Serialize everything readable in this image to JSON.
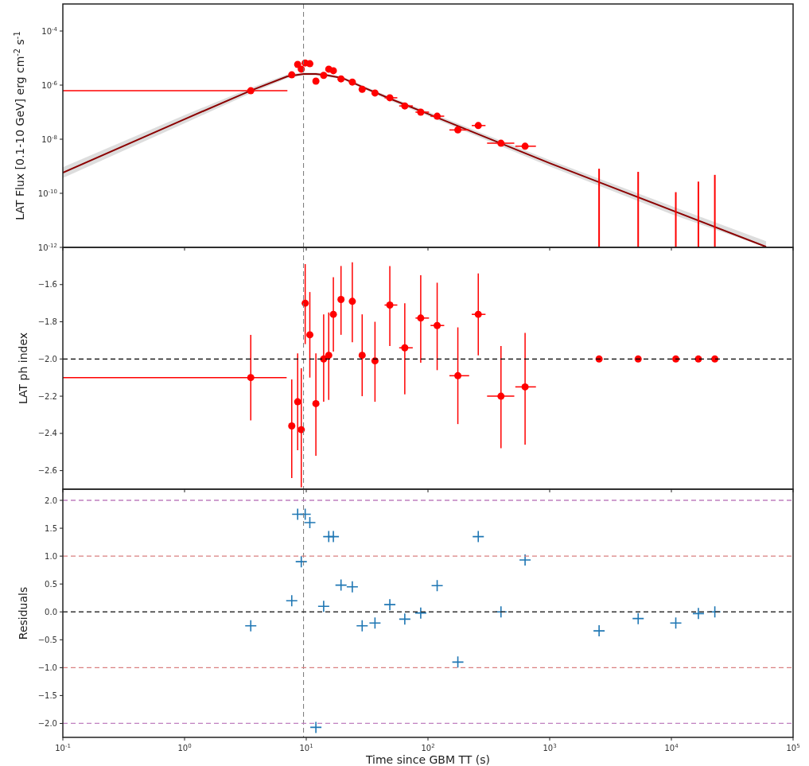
{
  "chart_data": [
    {
      "type": "scatter",
      "ylabel": "LAT Flux [0.1-10 GeV] erg cm$^{-2}$ s$^{-1}$",
      "log": "xy",
      "grid": false,
      "tick_labels": "y",
      "xlim": [
        0.1,
        100000
      ],
      "xticks": [
        {
          "value": 0.1,
          "label": null
        },
        {
          "value": 1,
          "label": null
        },
        {
          "value": 10,
          "label": null
        },
        {
          "value": 100,
          "label": null
        },
        {
          "value": 1000,
          "label": null
        },
        {
          "value": 10000,
          "label": null
        },
        {
          "value": 100000,
          "label": null
        }
      ],
      "ylim": [
        1e-12,
        0.001
      ],
      "yticks": [
        {
          "value": 1e-12,
          "label": "10$^{-12}$"
        },
        {
          "value": 1e-10,
          "label": "10$^{-10}$"
        },
        {
          "value": 1e-08,
          "label": "10$^{-8}$"
        },
        {
          "value": 1e-06,
          "label": "10$^{-6}$"
        },
        {
          "value": 0.0001,
          "label": "10$^{-4}$"
        }
      ],
      "ref_lines": [
        {
          "axis": "x",
          "value": 9.5,
          "color": "#777777",
          "line_style": "dashed"
        }
      ],
      "series": [
        {
          "type": "line",
          "color": "#8b0000",
          "marker": "none",
          "line_style": "solid",
          "x": [
            0.1,
            1,
            3.5,
            7,
            9.5,
            12,
            15,
            20,
            30,
            50,
            100,
            1000,
            10000,
            60000
          ],
          "values": [
            5.8e-10,
            5.5e-08,
            6.3e-07,
            2.1e-06,
            2.6e-06,
            2.6e-06,
            2.3e-06,
            1.8e-06,
            8e-07,
            3e-07,
            8.7e-08,
            1.3e-09,
            2.4e-11,
            1.05e-12
          ],
          "lower": [
            3.7e-10,
            3.9e-08,
            5e-07,
            1.8e-06,
            2.3e-06,
            2.3e-06,
            2.05e-06,
            1.6e-06,
            7e-07,
            2.55e-07,
            7.2e-08,
            9.9e-10,
            1.7e-11,
            1e-12
          ],
          "upper": [
            9.2e-10,
            7.8e-08,
            7.9e-07,
            2.5e-06,
            2.9e-06,
            2.9e-06,
            2.6e-06,
            2e-06,
            9.2e-07,
            3.5e-07,
            1.05e-07,
            1.7e-09,
            3.4e-11,
            1.7e-12
          ]
        },
        {
          "color": "#ff0000",
          "marker": "circle",
          "x": [
            3.5,
            7.6,
            8.5,
            9.1,
            9.8,
            10.7,
            12,
            13.9,
            15.3,
            16.7,
            19.3,
            23.9,
            28.8,
            36.7,
            48.6,
            64.5,
            87.2,
            119,
            176,
            259,
            398,
            628
          ],
          "values": [
            6.2e-07,
            2.4e-06,
            5.8e-06,
            3.9e-06,
            6.6e-06,
            6.2e-06,
            1.4e-06,
            2.3e-06,
            3.9e-06,
            3.4e-06,
            1.7e-06,
            1.3e-06,
            7e-07,
            5.1e-07,
            3.4e-07,
            1.7e-07,
            1e-07,
            7.1e-08,
            2.2e-08,
            3.2e-08,
            7.1e-09,
            5.5e-09
          ],
          "xerrors": [
            [
              0.1,
              7
            ],
            null,
            null,
            null,
            null,
            null,
            null,
            null,
            null,
            null,
            null,
            null,
            null,
            null,
            [
              44,
              56
            ],
            [
              58,
              75
            ],
            [
              79,
              102
            ],
            [
              105,
              136
            ],
            [
              150,
              218
            ],
            [
              229,
              297
            ],
            [
              306,
              512
            ],
            [
              522,
              771
            ]
          ]
        },
        {
          "type": "bar",
          "color": "#ff0000",
          "x": [
            2547,
            5334,
            10870,
            16670,
            22750
          ],
          "values": [
            8.1e-10,
            6.2e-10,
            1.1e-10,
            2.7e-10,
            4.8e-10
          ]
        }
      ]
    },
    {
      "type": "scatter",
      "ylabel": "LAT ph index",
      "log": "x",
      "grid": false,
      "tick_labels": "y",
      "xlim": [
        0.1,
        100000
      ],
      "xticks": [
        {
          "value": 0.1,
          "label": null
        },
        {
          "value": 1,
          "label": null
        },
        {
          "value": 10,
          "label": null
        },
        {
          "value": 100,
          "label": null
        },
        {
          "value": 1000,
          "label": null
        },
        {
          "value": 10000,
          "label": null
        },
        {
          "value": 100000,
          "label": null
        }
      ],
      "ylim": [
        -2.7,
        -1.4
      ],
      "yticks": [
        {
          "value": -2.6,
          "label": "−2.6"
        },
        {
          "value": -2.4,
          "label": "−2.4"
        },
        {
          "value": -2.2,
          "label": "−2.2"
        },
        {
          "value": -2.0,
          "label": "−2.0"
        },
        {
          "value": -1.8,
          "label": "−1.8"
        },
        {
          "value": -1.6,
          "label": "−1.6"
        }
      ],
      "ref_lines": [
        {
          "axis": "x",
          "value": 9.5,
          "color": "#777777",
          "line_style": "dashed"
        },
        {
          "axis": "y",
          "value": -2.0,
          "color": "#000000",
          "line_style": "dashed"
        }
      ],
      "series": [
        {
          "color": "#ff0000",
          "marker": "circle",
          "x": [
            3.5,
            7.6,
            8.5,
            9.1,
            9.8,
            10.7,
            12,
            13.9,
            15.3,
            16.7,
            19.3,
            23.9,
            28.8,
            36.7,
            48.6,
            64.5,
            87.2,
            119,
            176,
            259,
            398,
            628,
            2547,
            5334,
            10870,
            16670,
            22750
          ],
          "values": [
            -2.1,
            -2.36,
            -2.23,
            -2.38,
            -1.7,
            -1.87,
            -2.24,
            -2.0,
            -1.98,
            -1.76,
            -1.68,
            -1.69,
            -1.98,
            -2.01,
            -1.71,
            -1.94,
            -1.78,
            -1.82,
            -2.09,
            -1.76,
            -2.2,
            -2.15,
            -2.0,
            -2.0,
            -2.0,
            -2.0,
            -2.0
          ],
          "errors": [
            [
              -2.33,
              -1.87
            ],
            [
              -2.64,
              -2.11
            ],
            [
              -2.49,
              -1.97
            ],
            [
              -2.69,
              -2.05
            ],
            [
              -1.92,
              -1.49
            ],
            [
              -2.1,
              -1.64
            ],
            [
              -2.52,
              -1.97
            ],
            [
              -2.23,
              -1.76
            ],
            [
              -2.22,
              -1.75
            ],
            [
              -1.96,
              -1.56
            ],
            [
              -1.87,
              -1.5
            ],
            [
              -1.91,
              -1.48
            ],
            [
              -2.2,
              -1.76
            ],
            [
              -2.23,
              -1.8
            ],
            [
              -1.93,
              -1.5
            ],
            [
              -2.19,
              -1.7
            ],
            [
              -2.02,
              -1.55
            ],
            [
              -2.06,
              -1.59
            ],
            [
              -2.35,
              -1.83
            ],
            [
              -1.98,
              -1.54
            ],
            [
              -2.48,
              -1.93
            ],
            [
              -2.46,
              -1.86
            ],
            null,
            null,
            null,
            null,
            null
          ],
          "xerrors": [
            [
              0.1,
              6.9
            ],
            null,
            null,
            null,
            null,
            null,
            null,
            null,
            null,
            null,
            null,
            null,
            null,
            null,
            [
              44,
              56
            ],
            [
              58,
              75
            ],
            [
              79,
              102
            ],
            [
              105,
              136
            ],
            [
              150,
              218
            ],
            [
              229,
              297
            ],
            [
              306,
              512
            ],
            [
              522,
              771
            ],
            null,
            null,
            null,
            null,
            null
          ]
        }
      ]
    },
    {
      "type": "scatter",
      "ylabel": "Residuals",
      "xlabel": "Time since GBM TT (s)",
      "log": "x",
      "grid": false,
      "xlim": [
        0.1,
        100000
      ],
      "xticks": [
        {
          "value": 0.1,
          "label": "10$^{-1}$"
        },
        {
          "value": 1,
          "label": "10$^{0}$"
        },
        {
          "value": 10,
          "label": "10$^{1}$"
        },
        {
          "value": 100,
          "label": "10$^{2}$"
        },
        {
          "value": 1000,
          "label": "10$^{3}$"
        },
        {
          "value": 10000,
          "label": "10$^{4}$"
        },
        {
          "value": 100000,
          "label": "10$^{5}$"
        }
      ],
      "ylim": [
        -2.25,
        2.2
      ],
      "yticks": [
        {
          "value": -2.0,
          "label": "−2.0"
        },
        {
          "value": -1.5,
          "label": "−1.5"
        },
        {
          "value": -1.0,
          "label": "−1.0"
        },
        {
          "value": -0.5,
          "label": "−0.5"
        },
        {
          "value": 0,
          "label": "0.0"
        },
        {
          "value": 0.5,
          "label": "0.5"
        },
        {
          "value": 1.0,
          "label": "1.0"
        },
        {
          "value": 1.5,
          "label": "1.5"
        },
        {
          "value": 2.0,
          "label": "2.0"
        }
      ],
      "ref_lines": [
        {
          "axis": "x",
          "value": 9.5,
          "color": "#777777",
          "line_style": "dashed"
        },
        {
          "axis": "y",
          "value": 0,
          "color": "#333333",
          "line_style": "dashed"
        },
        {
          "axis": "y",
          "value": 1,
          "color": "#d98080",
          "line_style": "dashed"
        },
        {
          "axis": "y",
          "value": -1,
          "color": "#d98080",
          "line_style": "dashed"
        },
        {
          "axis": "y",
          "value": 2,
          "color": "#c080c0",
          "line_style": "dashed"
        },
        {
          "axis": "y",
          "value": -2,
          "color": "#c080c0",
          "line_style": "dashed"
        }
      ],
      "series": [
        {
          "color": "#1f77b4",
          "marker": "cross",
          "x": [
            3.5,
            7.6,
            8.5,
            9.1,
            9.8,
            10.7,
            12,
            13.9,
            15.3,
            16.7,
            19.3,
            23.9,
            28.8,
            36.7,
            48.6,
            64.5,
            87.2,
            119,
            176,
            259,
            398,
            628,
            2547,
            5334,
            10870,
            16670,
            22750
          ],
          "values": [
            -0.25,
            0.2,
            1.75,
            0.9,
            1.75,
            1.6,
            -2.07,
            0.1,
            1.35,
            1.35,
            0.48,
            0.45,
            -0.25,
            -0.2,
            0.13,
            -0.13,
            -0.02,
            0.47,
            -0.9,
            1.35,
            0,
            0.93,
            -0.34,
            -0.12,
            -0.2,
            -0.03,
            0
          ]
        }
      ]
    }
  ]
}
